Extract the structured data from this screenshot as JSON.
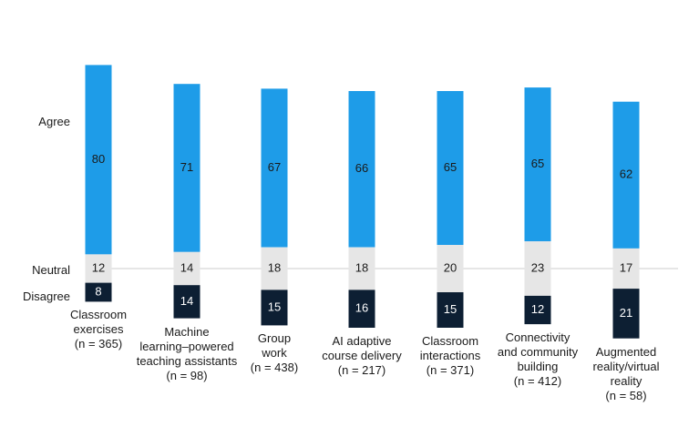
{
  "chart_data": {
    "type": "bar",
    "stacked": true,
    "row_labels": {
      "agree": "Agree",
      "neutral": "Neutral",
      "disagree": "Disagree"
    },
    "categories": [
      {
        "lines": [
          "Classroom",
          "exercises",
          "(n = 365)"
        ]
      },
      {
        "lines": [
          "Machine",
          "learning–powered",
          "teaching assistants",
          "(n = 98)"
        ]
      },
      {
        "lines": [
          "Group",
          "work",
          "(n = 438)"
        ]
      },
      {
        "lines": [
          "AI adaptive",
          "course delivery",
          "(n = 217)"
        ]
      },
      {
        "lines": [
          "Classroom",
          "interactions",
          "(n = 371)"
        ]
      },
      {
        "lines": [
          "Connectivity",
          "and community",
          "building",
          "(n = 412)"
        ]
      },
      {
        "lines": [
          "Augmented",
          "reality/virtual",
          "reality",
          "(n = 58)"
        ]
      }
    ],
    "series": [
      {
        "key": "agree",
        "values": [
          80,
          71,
          67,
          66,
          65,
          65,
          62
        ],
        "color": "#1e9ce8",
        "label_color": "#1a1a1a"
      },
      {
        "key": "neutral",
        "values": [
          12,
          14,
          18,
          18,
          20,
          23,
          17
        ],
        "color": "#e6e6e6",
        "label_color": "#1a1a1a"
      },
      {
        "key": "disagree",
        "values": [
          8,
          14,
          15,
          16,
          15,
          12,
          21
        ],
        "color": "#0d1f33",
        "label_color": "#ffffff"
      }
    ],
    "baseline_color": "#cccccc"
  }
}
